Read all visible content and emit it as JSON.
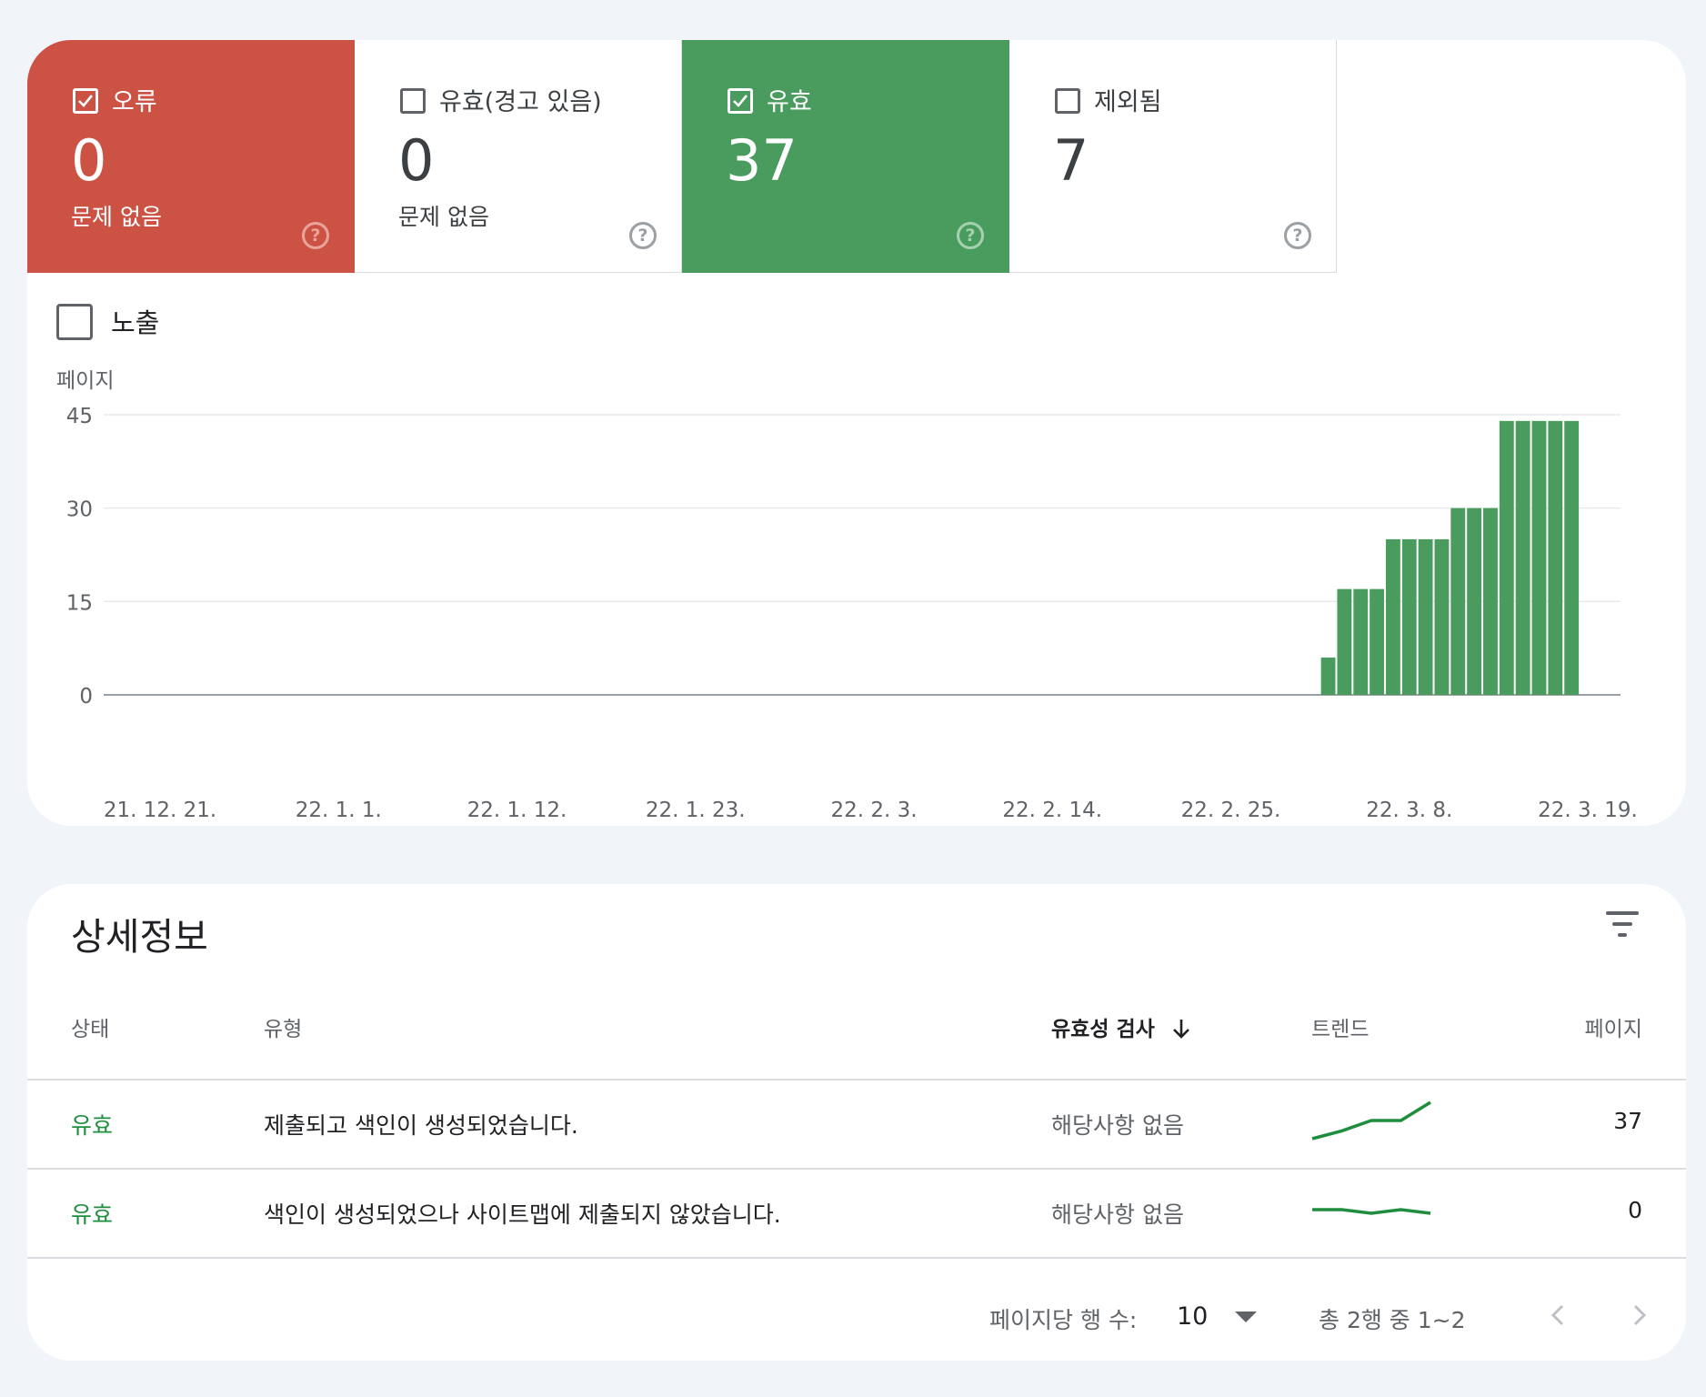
{
  "tiles": [
    {
      "label": "오류",
      "value": "0",
      "sub": "문제 없음",
      "checked": true
    },
    {
      "label": "유효(경고 있음)",
      "value": "0",
      "sub": "문제 없음",
      "checked": false
    },
    {
      "label": "유효",
      "value": "37",
      "sub": "",
      "checked": true
    },
    {
      "label": "제외됨",
      "value": "7",
      "sub": "",
      "checked": false
    }
  ],
  "help_glyph": "?",
  "impressions": {
    "label": "노출",
    "checked": false
  },
  "colors": {
    "error": "#cc5243",
    "valid": "#499c5e",
    "bar": "#499c5e",
    "status_text": "#1e8e3e",
    "trend": "#1e8e3e"
  },
  "chart_data": {
    "type": "bar",
    "ylabel": "페이지",
    "ylim": [
      0,
      45
    ],
    "yticks": [
      "0",
      "15",
      "30",
      "45"
    ],
    "xticks": [
      "21. 12. 21.",
      "22. 1. 1.",
      "22. 1. 12.",
      "22. 1. 23.",
      "22. 2. 3.",
      "22. 2. 14.",
      "22. 2. 25.",
      "22. 3. 8.",
      "22. 3. 19."
    ],
    "x_start": "2021-12-21",
    "x_end": "2022-03-19",
    "series": [
      {
        "x": [
          "2022-03-03",
          "2022-03-04",
          "2022-03-05",
          "2022-03-06",
          "2022-03-07",
          "2022-03-08",
          "2022-03-09",
          "2022-03-10",
          "2022-03-11",
          "2022-03-12",
          "2022-03-13",
          "2022-03-14",
          "2022-03-15",
          "2022-03-16",
          "2022-03-17",
          "2022-03-18"
        ],
        "values": [
          6,
          17,
          17,
          17,
          25,
          25,
          25,
          25,
          30,
          30,
          30,
          44,
          44,
          44,
          44,
          44
        ]
      }
    ],
    "grid": true
  },
  "details": {
    "title": "상세정보",
    "columns": {
      "status": "상태",
      "type": "유형",
      "validation": "유효성 검사",
      "trend": "트렌드",
      "pages": "페이지"
    },
    "rows": [
      {
        "status": "유효",
        "type": "제출되고 색인이 생성되었습니다.",
        "validation": "해당사항 없음",
        "trend": [
          0,
          3,
          7,
          7,
          14
        ],
        "pages": "37"
      },
      {
        "status": "유효",
        "type": "색인이 생성되었으나 사이트맵에 제출되지 않았습니다.",
        "validation": "해당사항 없음",
        "trend": [
          0,
          0,
          -1,
          0,
          -1
        ],
        "pages": "0"
      }
    ],
    "footer": {
      "rows_per_page_label": "페이지당 행 수:",
      "rows_per_page": "10",
      "range": "총 2행 중 1~2"
    }
  }
}
